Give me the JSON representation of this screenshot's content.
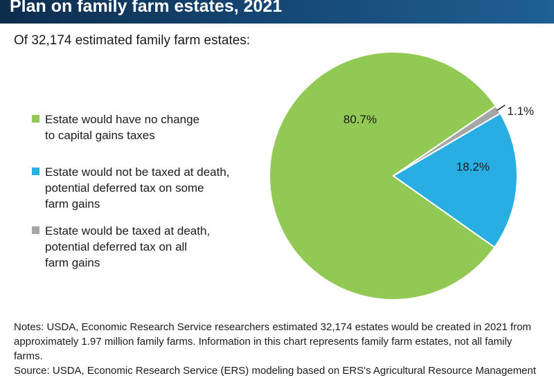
{
  "header": {
    "title": "Plan on family farm estates, 2021"
  },
  "subtitle": "Of 32,174 estimated family farm estates:",
  "colors": {
    "title_bar": "#164a78",
    "green": "#92c954",
    "blue": "#29aee3",
    "gray": "#a6a6a6"
  },
  "legend": [
    {
      "lines": [
        "Estate would have no change",
        "to capital gains taxes"
      ],
      "color": "#92c954"
    },
    {
      "lines": [
        "Estate would not be taxed at death,",
        "potential deferred tax on some",
        "farm gains"
      ],
      "color": "#29aee3"
    },
    {
      "lines": [
        "Estate would be taxed at death,",
        "potential deferred tax on all",
        "farm gains"
      ],
      "color": "#a6a6a6"
    }
  ],
  "chart_data": {
    "type": "pie",
    "categories": [
      "Estate would have no change to capital gains taxes",
      "Estate would not be taxed at death, potential deferred tax on some farm gains",
      "Estate would be taxed at death, potential deferred tax on all farm gains"
    ],
    "values": [
      80.7,
      18.2,
      1.1
    ],
    "labels": [
      "80.7%",
      "18.2%",
      "1.1%"
    ],
    "colors": [
      "#92c954",
      "#29aee3",
      "#a6a6a6"
    ],
    "title": "Plan on family farm estates, 2021",
    "subtitle": "Of 32,174 estimated family farm estates:",
    "legend_position": "left"
  },
  "notes": "Notes: USDA, Economic Research Service researchers estimated 32,174 estates would be created in 2021 from approximately 1.97 million family farms. Information in this chart represents family farm estates, not all family farms.",
  "source": "Source: USDA, Economic Research Service (ERS) modeling based on ERS's Agricultural Resource Management"
}
